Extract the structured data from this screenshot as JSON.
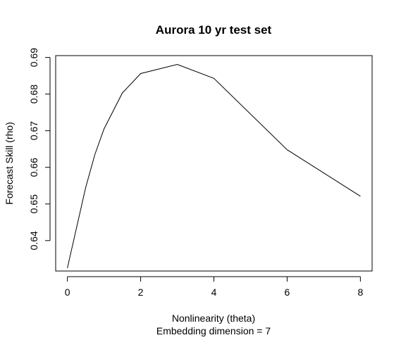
{
  "chart_data": {
    "type": "line",
    "title": "Aurora 10 yr test set",
    "xlabel": "Nonlinearity (theta)",
    "subtitle": "Embedding dimension = 7",
    "ylabel": "Forecast Skill (rho)",
    "x_ticks": [
      "0",
      "2",
      "4",
      "6",
      "8"
    ],
    "y_ticks": [
      "0.64",
      "0.65",
      "0.66",
      "0.67",
      "0.68",
      "0.69"
    ],
    "xlim": [
      -0.32,
      8.32
    ],
    "ylim": [
      0.6317,
      0.6905
    ],
    "grid": false,
    "legend": "none",
    "line_color": "#000000",
    "series": [
      {
        "x": [
          0,
          0.5,
          0.75,
          1,
          1.5,
          2,
          3,
          4,
          6,
          8
        ],
        "y": [
          0.6325,
          0.6545,
          0.6635,
          0.6705,
          0.6803,
          0.6856,
          0.6881,
          0.6843,
          0.6648,
          0.6521
        ]
      }
    ]
  }
}
